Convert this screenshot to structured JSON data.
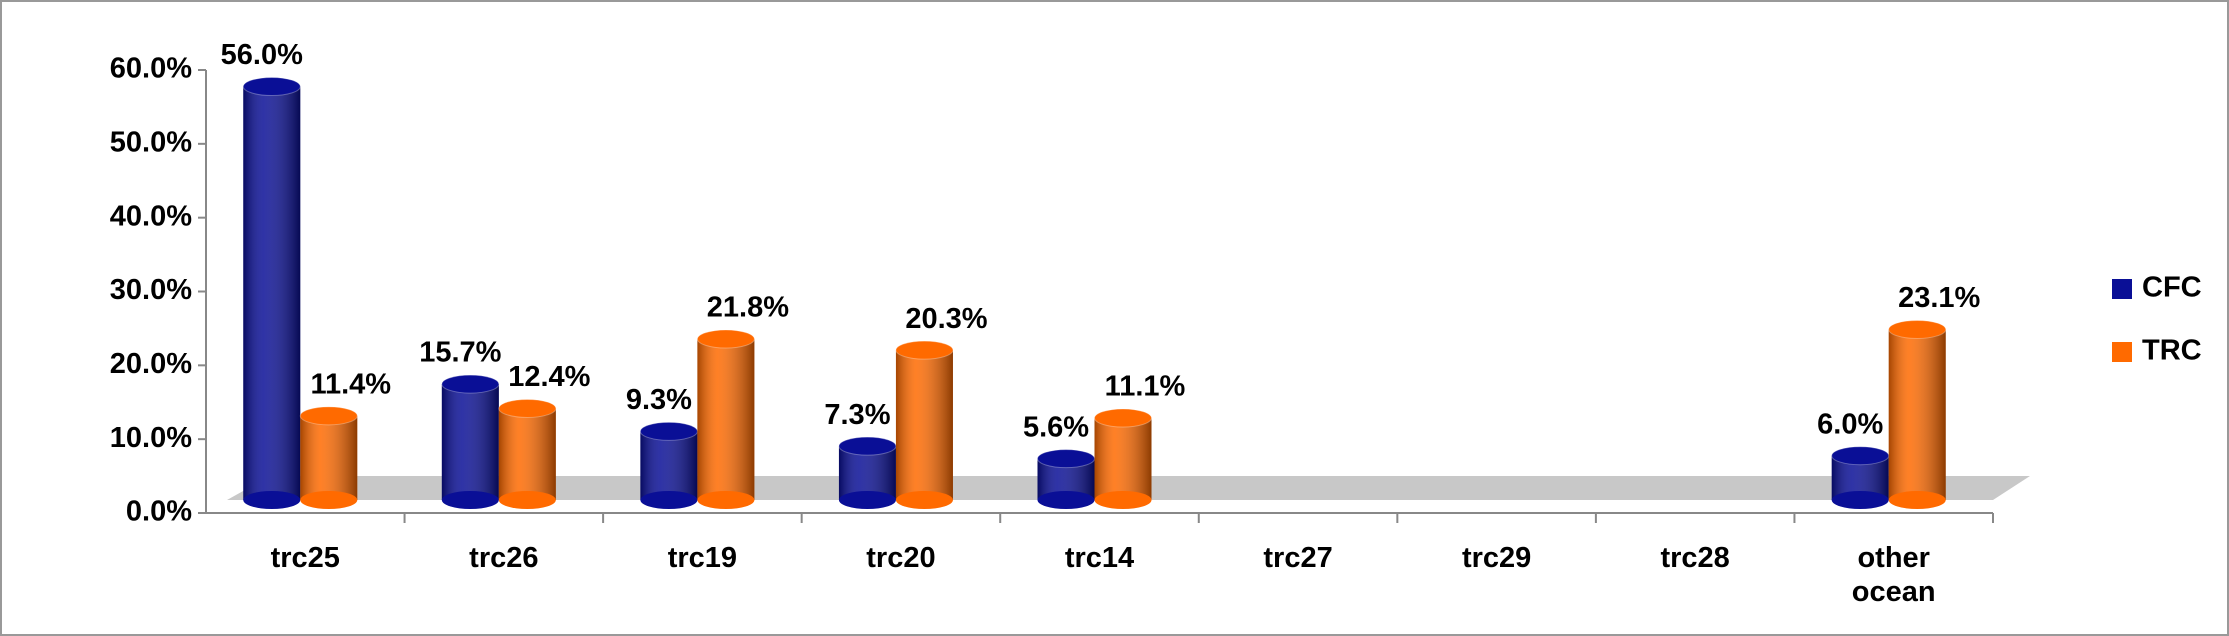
{
  "chart_data": {
    "type": "bar",
    "style": "3d-cylinder",
    "categories": [
      "trc25",
      "trc26",
      "trc19",
      "trc20",
      "trc14",
      "trc27",
      "trc29",
      "trc28",
      "other ocean"
    ],
    "series": [
      {
        "name": "CFC",
        "color": "#0a0f96",
        "values": [
          56,
          15.7,
          9.3,
          7.3,
          5.6,
          null,
          null,
          null,
          6
        ],
        "value_labels": [
          "56.0%",
          "15.7%",
          "9.3%",
          "7.3%",
          "5.6%",
          null,
          null,
          null,
          "6.0%"
        ]
      },
      {
        "name": "TRC",
        "color": "#ff6a00",
        "values": [
          11.4,
          12.4,
          21.8,
          20.3,
          11.1,
          null,
          null,
          null,
          23.1
        ],
        "value_labels": [
          "11.4%",
          "12.4%",
          "21.8%",
          "20.3%",
          "11.1%",
          null,
          null,
          null,
          "23.1%"
        ]
      }
    ],
    "ylim": [
      0,
      60
    ],
    "yticks": [
      {
        "value": 0,
        "label": "0.0%"
      },
      {
        "value": 10,
        "label": "10.0%"
      },
      {
        "value": 20,
        "label": "20.0%"
      },
      {
        "value": 30,
        "label": "30.0%"
      },
      {
        "value": 40,
        "label": "40.0%"
      },
      {
        "value": 50,
        "label": "50.0%"
      },
      {
        "value": 60,
        "label": "60.0%"
      }
    ],
    "legend": "right"
  }
}
